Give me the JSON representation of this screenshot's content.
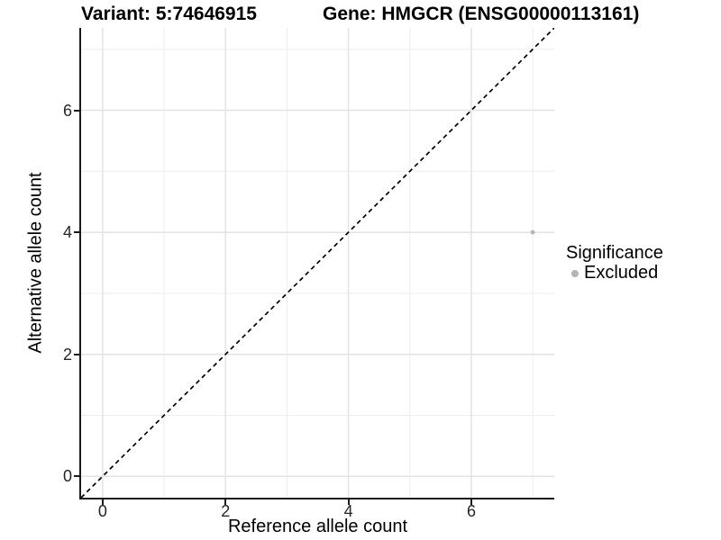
{
  "chart_data": {
    "type": "scatter",
    "title_left": "Variant: 5:74646915",
    "title_right": "Gene: HMGCR (ENSG00000113161)",
    "xlabel": "Reference allele count",
    "ylabel": "Alternative allele count",
    "xlim": [
      -0.35,
      7.35
    ],
    "ylim": [
      -0.35,
      7.35
    ],
    "x_ticks": [
      0,
      2,
      4,
      6
    ],
    "y_ticks": [
      0,
      2,
      4,
      6
    ],
    "x_tick_labels": [
      "0",
      "2",
      "4",
      "6"
    ],
    "y_tick_labels": [
      "0",
      "2",
      "4",
      "6"
    ],
    "x_minor": [
      1,
      3,
      5,
      7
    ],
    "y_minor": [
      1,
      3,
      5,
      7
    ],
    "grid": true,
    "grid_major_color": "#e3e3e3",
    "grid_minor_color": "#ededed",
    "background_color": "#ffffff",
    "reference_line": {
      "slope": 1,
      "intercept": 0,
      "style": "dashed",
      "color": "#000000"
    },
    "series": [
      {
        "name": "Excluded",
        "color": "#b4b4b4",
        "points": [
          {
            "x": 7,
            "y": 4
          }
        ]
      }
    ],
    "legend": {
      "title": "Significance",
      "position": "right",
      "entries": [
        {
          "label": "Excluded",
          "color": "#b4b4b4"
        }
      ]
    }
  }
}
